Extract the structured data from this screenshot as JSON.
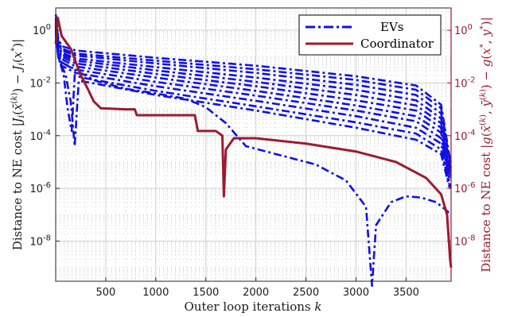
{
  "chart_data": {
    "type": "line",
    "xlabel": "Outer loop iterations k",
    "ylabel_left": "Distance to NE cost |J_i(x̄^(k)) − J_i(x*)|",
    "ylabel_right": "Distance to NE cost |g(x̄^(k), ȳ^(k)) − g(x*, y*)|",
    "xlim": [
      0,
      3950
    ],
    "ylim": [
      3e-10,
      7
    ],
    "yscale": "log",
    "x_ticks": [
      500,
      1000,
      1500,
      2000,
      2500,
      3000,
      3500
    ],
    "x_tick_labels": [
      "500",
      "1000",
      "1500",
      "2000",
      "2500",
      "3000",
      "3500"
    ],
    "y_ticks": [
      1.0,
      0.01,
      0.0001,
      1e-06,
      1e-08
    ],
    "y_tick_labels": [
      {
        "base": "10",
        "exp": "0"
      },
      {
        "base": "10",
        "exp": "-2"
      },
      {
        "base": "10",
        "exp": "-4"
      },
      {
        "base": "10",
        "exp": "-6"
      },
      {
        "base": "10",
        "exp": "-8"
      }
    ],
    "grid": true,
    "legend_position": "top-right",
    "legend": [
      {
        "label": "EVs",
        "color": "#1010e6",
        "style": "dash-dot"
      },
      {
        "label": "Coordinator",
        "color": "#9b1b30",
        "style": "solid"
      }
    ],
    "ev_color": "#1010e6",
    "coordinator_color": "#9b1b30",
    "series": [
      {
        "group": "EVs",
        "values": [
          [
            1,
            4
          ],
          [
            25,
            0.5
          ],
          [
            60,
            0.25
          ],
          [
            200,
            0.17
          ],
          [
            1000,
            0.09
          ],
          [
            2000,
            0.045
          ],
          [
            3000,
            0.018
          ],
          [
            3600,
            0.008
          ],
          [
            3850,
            0.0015
          ],
          [
            3930,
            2e-05
          ],
          [
            3950,
            1e-05
          ]
        ]
      },
      {
        "group": "EVs",
        "values": [
          [
            1,
            3
          ],
          [
            25,
            0.4
          ],
          [
            60,
            0.2
          ],
          [
            200,
            0.13
          ],
          [
            1000,
            0.07
          ],
          [
            2000,
            0.033
          ],
          [
            3000,
            0.013
          ],
          [
            3600,
            0.0055
          ],
          [
            3850,
            0.0011
          ],
          [
            3930,
            1.5e-05
          ],
          [
            3950,
            8e-06
          ]
        ]
      },
      {
        "group": "EVs",
        "values": [
          [
            1,
            2.5
          ],
          [
            25,
            0.35
          ],
          [
            60,
            0.17
          ],
          [
            200,
            0.11
          ],
          [
            1000,
            0.055
          ],
          [
            2000,
            0.024
          ],
          [
            3000,
            0.0085
          ],
          [
            3600,
            0.0035
          ],
          [
            3850,
            0.0007
          ],
          [
            3930,
            1e-05
          ],
          [
            3950,
            6e-06
          ]
        ]
      },
      {
        "group": "EVs",
        "values": [
          [
            1,
            2
          ],
          [
            25,
            0.3
          ],
          [
            60,
            0.14
          ],
          [
            200,
            0.085
          ],
          [
            1000,
            0.04
          ],
          [
            2000,
            0.016
          ],
          [
            3000,
            0.0055
          ],
          [
            3600,
            0.0022
          ],
          [
            3850,
            0.00045
          ],
          [
            3930,
            7e-06
          ],
          [
            3950,
            5e-06
          ]
        ]
      },
      {
        "group": "EVs",
        "values": [
          [
            1,
            1.8
          ],
          [
            25,
            0.25
          ],
          [
            60,
            0.12
          ],
          [
            200,
            0.07
          ],
          [
            1000,
            0.03
          ],
          [
            2000,
            0.011
          ],
          [
            3000,
            0.0035
          ],
          [
            3600,
            0.0014
          ],
          [
            3850,
            0.0003
          ],
          [
            3930,
            5e-06
          ],
          [
            3950,
            4e-06
          ]
        ]
      },
      {
        "group": "EVs",
        "values": [
          [
            1,
            1.5
          ],
          [
            25,
            0.2
          ],
          [
            60,
            0.1
          ],
          [
            200,
            0.055
          ],
          [
            1000,
            0.022
          ],
          [
            2000,
            0.0075
          ],
          [
            3000,
            0.0022
          ],
          [
            3600,
            0.0009
          ],
          [
            3850,
            0.0002
          ],
          [
            3930,
            4e-06
          ],
          [
            3950,
            3e-06
          ]
        ]
      },
      {
        "group": "EVs",
        "values": [
          [
            1,
            1.3
          ],
          [
            25,
            0.17
          ],
          [
            60,
            0.08
          ],
          [
            200,
            0.042
          ],
          [
            1000,
            0.016
          ],
          [
            2000,
            0.005
          ],
          [
            3000,
            0.0014
          ],
          [
            3600,
            0.00055
          ],
          [
            3850,
            0.00013
          ],
          [
            3930,
            3e-06
          ],
          [
            3950,
            2.5e-06
          ]
        ]
      },
      {
        "group": "EVs",
        "values": [
          [
            1,
            1.1
          ],
          [
            25,
            0.14
          ],
          [
            60,
            0.06
          ],
          [
            200,
            0.032
          ],
          [
            1000,
            0.011
          ],
          [
            2000,
            0.0033
          ],
          [
            3000,
            0.0009
          ],
          [
            3600,
            0.00035
          ],
          [
            3850,
            8e-05
          ],
          [
            3930,
            2.5e-06
          ],
          [
            3950,
            2e-06
          ]
        ]
      },
      {
        "group": "EVs",
        "values": [
          [
            1,
            1
          ],
          [
            25,
            0.11
          ],
          [
            60,
            0.045
          ],
          [
            200,
            0.024
          ],
          [
            1000,
            0.0075
          ],
          [
            2000,
            0.0021
          ],
          [
            3000,
            0.00055
          ],
          [
            3600,
            0.0002
          ],
          [
            3850,
            5e-05
          ],
          [
            3930,
            2e-06
          ],
          [
            3950,
            1.5e-06
          ]
        ]
      },
      {
        "group": "EVs",
        "values": [
          [
            1,
            0.9
          ],
          [
            30,
            0.09
          ],
          [
            80,
            0.02
          ],
          [
            120,
            0.001
          ],
          [
            160,
            0.00015
          ],
          [
            190,
            0.02
          ],
          [
            260,
            0.016
          ],
          [
            1000,
            0.005
          ],
          [
            2000,
            0.0013
          ],
          [
            3000,
            0.00032
          ],
          [
            3600,
            0.00012
          ],
          [
            3850,
            3e-05
          ],
          [
            3930,
            1.5e-06
          ],
          [
            3950,
            1.2e-06
          ]
        ]
      },
      {
        "group": "EVs",
        "values": [
          [
            1,
            0.8
          ],
          [
            30,
            0.08
          ],
          [
            100,
            0.02
          ],
          [
            150,
            0.002
          ],
          [
            190,
            4e-05
          ],
          [
            230,
            0.012
          ],
          [
            300,
            0.011
          ],
          [
            1000,
            0.0035
          ],
          [
            2000,
            0.0009
          ],
          [
            3000,
            0.0002
          ],
          [
            3600,
            7e-05
          ],
          [
            3850,
            2e-05
          ],
          [
            3930,
            1.2e-06
          ],
          [
            3950,
            1e-06
          ]
        ]
      },
      {
        "group": "EVs",
        "values": [
          [
            1,
            0.7
          ],
          [
            30,
            0.07
          ],
          [
            200,
            0.03
          ],
          [
            400,
            0.012
          ],
          [
            700,
            0.006
          ],
          [
            1000,
            0.004
          ],
          [
            1300,
            0.0025
          ],
          [
            1500,
            0.0012
          ],
          [
            1700,
            0.0003
          ],
          [
            1900,
            4e-05
          ],
          [
            2200,
            2e-05
          ],
          [
            2600,
            8e-06
          ],
          [
            2900,
            2e-06
          ],
          [
            3100,
            2e-07
          ],
          [
            3160,
            2e-10
          ],
          [
            3200,
            4e-08
          ],
          [
            3350,
            3e-07
          ],
          [
            3500,
            5e-07
          ],
          [
            3650,
            4.5e-07
          ],
          [
            3800,
            3e-07
          ],
          [
            3900,
            1.5e-07
          ],
          [
            3950,
            1e-07
          ]
        ]
      },
      {
        "group": "Coordinator",
        "values": [
          [
            1,
            0.3
          ],
          [
            20,
            3
          ],
          [
            60,
            0.6
          ],
          [
            150,
            0.2
          ],
          [
            250,
            0.02
          ],
          [
            320,
            0.006
          ],
          [
            380,
            0.002
          ],
          [
            450,
            0.0011
          ],
          [
            700,
            0.001
          ],
          [
            790,
            0.001
          ],
          [
            810,
            0.0006
          ],
          [
            1000,
            0.0006
          ],
          [
            1200,
            0.0006
          ],
          [
            1390,
            0.0006
          ],
          [
            1420,
            0.00015
          ],
          [
            1600,
            0.00015
          ],
          [
            1665,
            0.0001
          ],
          [
            1680,
            5e-07
          ],
          [
            1700,
            3e-05
          ],
          [
            1780,
            8e-05
          ],
          [
            2000,
            8e-05
          ],
          [
            2500,
            5e-05
          ],
          [
            3000,
            2.5e-05
          ],
          [
            3400,
            1e-05
          ],
          [
            3700,
            2.5e-06
          ],
          [
            3850,
            6e-07
          ],
          [
            3910,
            1e-07
          ],
          [
            3940,
            2e-09
          ],
          [
            3950,
            1e-09
          ]
        ]
      }
    ]
  }
}
